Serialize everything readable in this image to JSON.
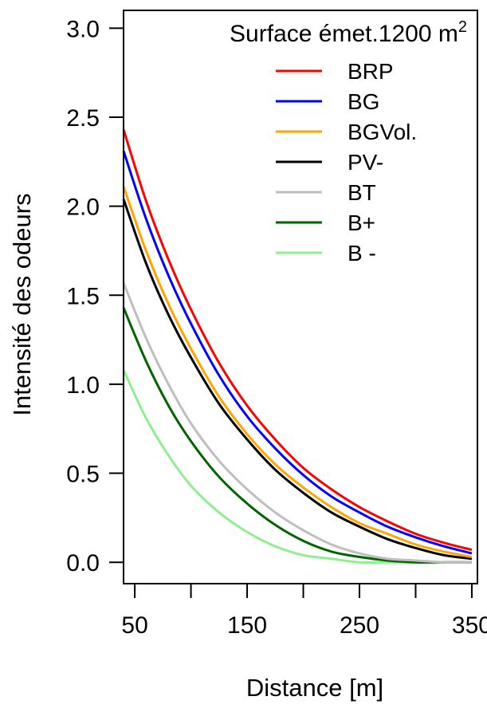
{
  "chart_data": {
    "type": "line",
    "title": "",
    "xlabel": "Distance [m]",
    "ylabel": "Intensité des odeurs",
    "xlim": [
      40,
      355
    ],
    "ylim": [
      -0.12,
      3.1
    ],
    "x_ticks": [
      50,
      100,
      150,
      200,
      250,
      300,
      350
    ],
    "x_tick_labels": [
      "50",
      "",
      "150",
      "",
      "250",
      "",
      "350"
    ],
    "y_ticks": [
      0.0,
      0.5,
      1.0,
      1.5,
      2.0,
      2.5,
      3.0
    ],
    "y_tick_labels": [
      "0.0",
      "0.5",
      "1.0",
      "1.5",
      "2.0",
      "2.5",
      "3.0"
    ],
    "grid": false,
    "legend": {
      "title": "Surface émet.1200 m",
      "title_superscript": "2",
      "placement": "top-right"
    },
    "x": [
      40,
      60,
      80,
      100,
      125,
      150,
      175,
      200,
      225,
      250,
      275,
      300,
      325,
      350
    ],
    "series": [
      {
        "name": "BRP",
        "color": "#ff0000",
        "values": [
          2.43,
          2.03,
          1.7,
          1.42,
          1.12,
          0.88,
          0.69,
          0.53,
          0.41,
          0.31,
          0.23,
          0.16,
          0.11,
          0.07
        ]
      },
      {
        "name": "BG",
        "color": "#0000ff",
        "values": [
          2.31,
          1.93,
          1.61,
          1.34,
          1.05,
          0.82,
          0.64,
          0.49,
          0.37,
          0.28,
          0.2,
          0.14,
          0.09,
          0.05
        ]
      },
      {
        "name": "BGVol.",
        "color": "#ffa500",
        "values": [
          2.11,
          1.75,
          1.45,
          1.2,
          0.93,
          0.72,
          0.55,
          0.42,
          0.31,
          0.22,
          0.16,
          0.1,
          0.06,
          0.03
        ]
      },
      {
        "name": "PV-",
        "color": "#000000",
        "values": [
          2.04,
          1.68,
          1.39,
          1.15,
          0.89,
          0.69,
          0.52,
          0.39,
          0.28,
          0.2,
          0.13,
          0.08,
          0.04,
          0.02
        ]
      },
      {
        "name": "BT",
        "color": "#bebebe",
        "values": [
          1.57,
          1.26,
          1.0,
          0.78,
          0.57,
          0.41,
          0.28,
          0.18,
          0.1,
          0.05,
          0.02,
          0.01,
          0.0,
          0.0
        ]
      },
      {
        "name": "B+",
        "color": "#006400",
        "values": [
          1.43,
          1.13,
          0.88,
          0.68,
          0.48,
          0.33,
          0.21,
          0.12,
          0.06,
          0.03,
          0.01,
          0.0,
          0.0,
          0.0
        ]
      },
      {
        "name": "B -",
        "color": "#90ee90",
        "values": [
          1.08,
          0.81,
          0.6,
          0.43,
          0.28,
          0.17,
          0.09,
          0.04,
          0.02,
          0.0,
          0.0,
          0.0,
          0.0,
          0.0
        ]
      }
    ]
  }
}
